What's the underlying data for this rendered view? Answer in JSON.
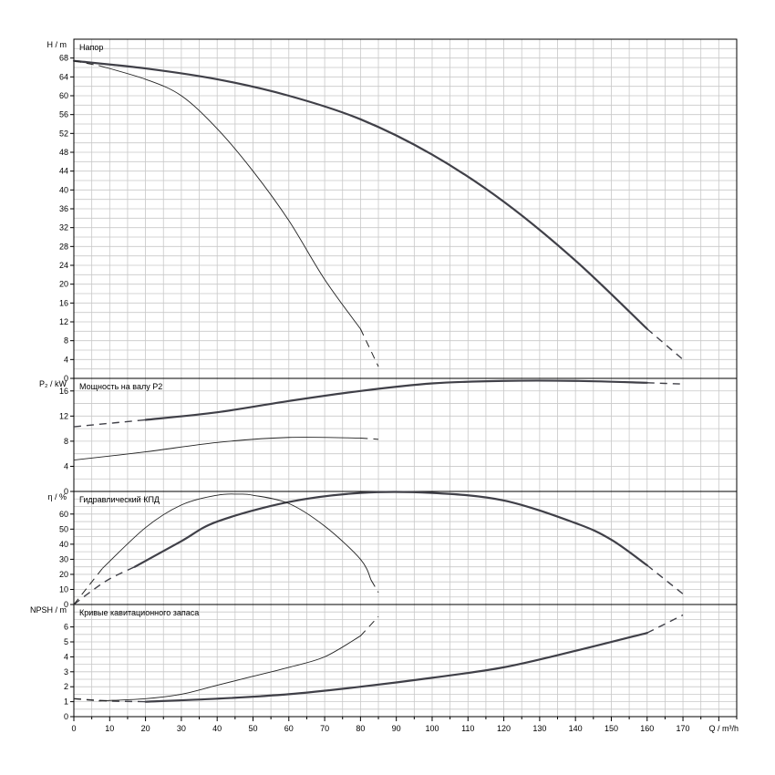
{
  "chart_data": {
    "type": "line",
    "grid": true,
    "x_axis": {
      "label": "Q / m³/h",
      "range": [
        0,
        185
      ],
      "major_ticks": [
        0,
        10,
        20,
        30,
        40,
        50,
        60,
        70,
        80,
        90,
        100,
        110,
        120,
        130,
        140,
        150,
        160,
        170
      ]
    },
    "panels": [
      {
        "id": "head",
        "title": "Напор",
        "ylabel": "H / m",
        "ylim": [
          0,
          72
        ],
        "yticks": [
          0,
          4,
          8,
          12,
          16,
          20,
          24,
          28,
          32,
          36,
          40,
          44,
          48,
          52,
          56,
          60,
          64,
          68
        ],
        "series": [
          {
            "weight": "bold",
            "solid": [
              [
                0,
                67.4
              ],
              [
                20,
                65.8
              ],
              [
                40,
                63.5
              ],
              [
                60,
                60
              ],
              [
                80,
                55
              ],
              [
                100,
                47.5
              ],
              [
                120,
                37.5
              ],
              [
                140,
                25
              ],
              [
                160,
                10.5
              ]
            ],
            "dashed": [
              [
                0,
                67.4
              ],
              [
                20,
                65.8
              ]
            ],
            "dashed_end": [
              [
                160,
                10.5
              ],
              [
                170,
                4
              ]
            ]
          },
          {
            "weight": "thin",
            "solid": [
              [
                7,
                66.4
              ],
              [
                20,
                63.5
              ],
              [
                30,
                60
              ],
              [
                40,
                53
              ],
              [
                50,
                44
              ],
              [
                60,
                33.5
              ],
              [
                70,
                21
              ],
              [
                80,
                10.5
              ]
            ],
            "dashed": [
              [
                0,
                67.4
              ],
              [
                7,
                66.4
              ]
            ],
            "dashed_end": [
              [
                80,
                10.5
              ],
              [
                85,
                2.5
              ]
            ]
          }
        ]
      },
      {
        "id": "power",
        "title": "Мощность на валу P2",
        "ylabel": "P₂ / kW",
        "ylim": [
          0,
          18
        ],
        "yticks": [
          0,
          4,
          8,
          12,
          16
        ],
        "series": [
          {
            "weight": "bold",
            "solid": [
              [
                20,
                11.4
              ],
              [
                40,
                12.6
              ],
              [
                60,
                14.4
              ],
              [
                80,
                16
              ],
              [
                100,
                17.2
              ],
              [
                120,
                17.6
              ],
              [
                140,
                17.6
              ],
              [
                160,
                17.3
              ]
            ],
            "dashed": [
              [
                0,
                10.3
              ],
              [
                20,
                11.4
              ]
            ],
            "dashed_end": [
              [
                160,
                17.3
              ],
              [
                170,
                17.1
              ]
            ]
          },
          {
            "weight": "thin",
            "solid": [
              [
                0,
                5
              ],
              [
                20,
                6.3
              ],
              [
                40,
                7.8
              ],
              [
                60,
                8.6
              ],
              [
                80,
                8.5
              ]
            ],
            "dashed": [],
            "dashed_end": [
              [
                80,
                8.5
              ],
              [
                85,
                8.3
              ]
            ]
          }
        ]
      },
      {
        "id": "eff",
        "title": "Гидравлический КПД",
        "ylabel": "η / %",
        "ylim": [
          0,
          75
        ],
        "yticks": [
          0,
          10,
          20,
          30,
          40,
          50,
          60
        ],
        "series": [
          {
            "weight": "bold",
            "solid": [
              [
                17,
                25
              ],
              [
                30,
                42
              ],
              [
                40,
                55
              ],
              [
                60,
                68
              ],
              [
                80,
                74
              ],
              [
                100,
                74
              ],
              [
                120,
                69
              ],
              [
                140,
                54
              ],
              [
                150,
                43
              ],
              [
                160,
                26
              ]
            ],
            "dashed": [
              [
                0,
                0
              ],
              [
                5,
                9
              ],
              [
                10,
                17
              ],
              [
                17,
                25
              ]
            ],
            "dashed_end": [
              [
                160,
                26
              ],
              [
                170,
                7
              ]
            ]
          },
          {
            "weight": "thin",
            "solid": [
              [
                8,
                24
              ],
              [
                20,
                51
              ],
              [
                30,
                66
              ],
              [
                40,
                72.5
              ],
              [
                46,
                73.2
              ],
              [
                50,
                72.5
              ],
              [
                60,
                67
              ],
              [
                70,
                52
              ],
              [
                80,
                30
              ],
              [
                83,
                16
              ]
            ],
            "dashed": [
              [
                0,
                0
              ],
              [
                4,
                12
              ],
              [
                8,
                24
              ]
            ],
            "dashed_end": [
              [
                83,
                16
              ],
              [
                85,
                8
              ]
            ]
          }
        ]
      },
      {
        "id": "npsh",
        "title": "Кривые кавитационного запаса",
        "ylabel": "NPSH / m",
        "ylim": [
          0,
          7.5
        ],
        "yticks": [
          0,
          1,
          2,
          3,
          4,
          5,
          6
        ],
        "series": [
          {
            "weight": "bold",
            "solid": [
              [
                20,
                1
              ],
              [
                40,
                1.2
              ],
              [
                60,
                1.5
              ],
              [
                80,
                2
              ],
              [
                100,
                2.6
              ],
              [
                120,
                3.3
              ],
              [
                140,
                4.4
              ],
              [
                160,
                5.6
              ]
            ],
            "dashed": [
              [
                0,
                1.2
              ],
              [
                10,
                1.05
              ],
              [
                20,
                1
              ]
            ],
            "dashed_end": [
              [
                160,
                5.6
              ],
              [
                170,
                6.8
              ]
            ]
          },
          {
            "weight": "thin",
            "solid": [
              [
                7,
                1.05
              ],
              [
                20,
                1.2
              ],
              [
                30,
                1.5
              ],
              [
                40,
                2.1
              ],
              [
                50,
                2.7
              ],
              [
                60,
                3.3
              ],
              [
                70,
                4
              ],
              [
                80,
                5.4
              ]
            ],
            "dashed": [
              [
                0,
                1.2
              ],
              [
                7,
                1.05
              ]
            ],
            "dashed_end": [
              [
                80,
                5.4
              ],
              [
                85,
                6.7
              ]
            ]
          }
        ]
      }
    ]
  }
}
